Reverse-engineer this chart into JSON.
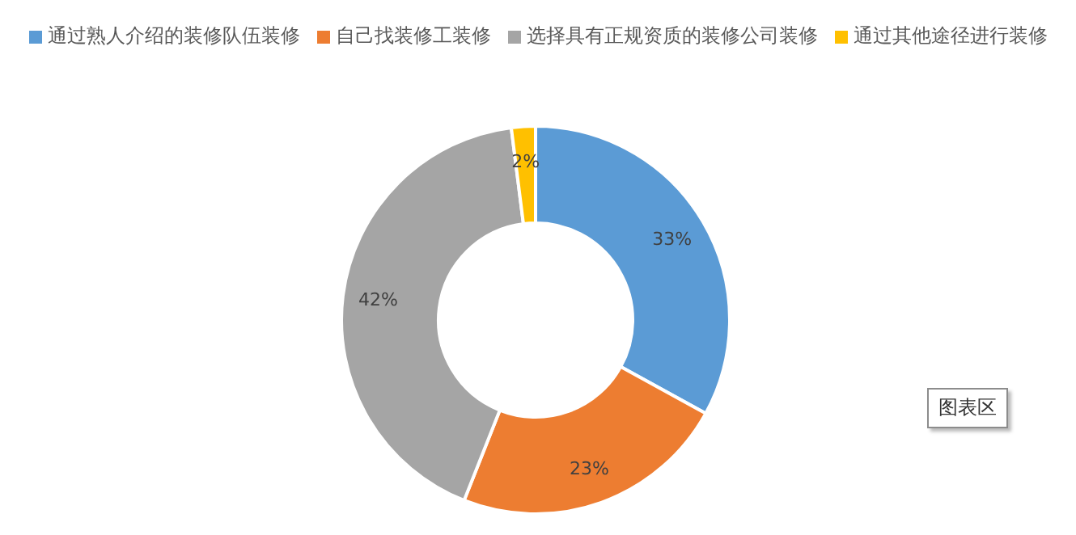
{
  "chart_data": {
    "type": "donut",
    "categories": [
      "通过熟人介绍的装修队伍装修",
      "自己找装修工装修",
      "选择具有正规资质的装修公司装修",
      "通过其他途径进行装修"
    ],
    "values": [
      33,
      23,
      42,
      2
    ],
    "colors": [
      "#5b9bd5",
      "#ed7d31",
      "#a5a5a5",
      "#ffc000"
    ],
    "value_labels": [
      "33%",
      "23%",
      "42%",
      "2%"
    ],
    "legend": "top",
    "annotations": [
      "图表区"
    ]
  }
}
